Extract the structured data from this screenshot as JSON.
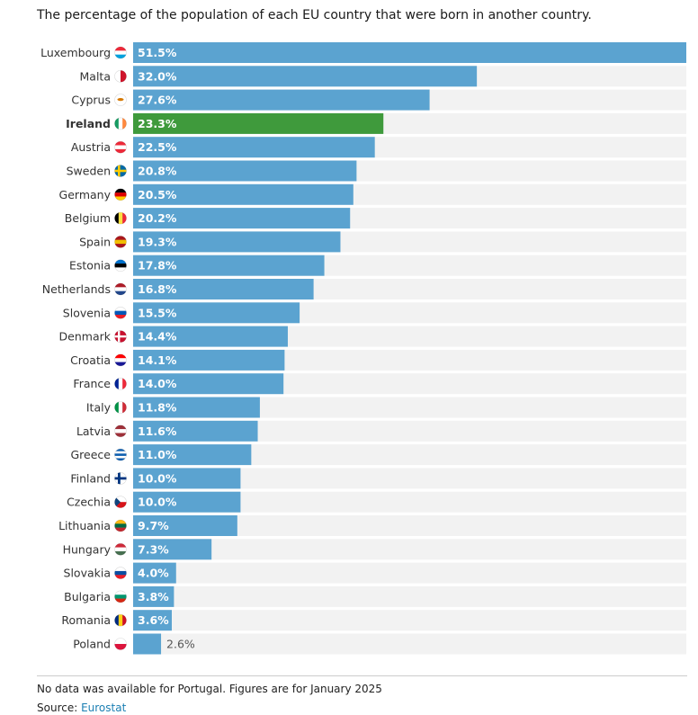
{
  "chart_data": {
    "type": "bar",
    "orientation": "horizontal",
    "title": "The percentage of the population of each EU country that were born in another country.",
    "categories": [
      "Luxembourg",
      "Malta",
      "Cyprus",
      "Ireland",
      "Austria",
      "Sweden",
      "Germany",
      "Belgium",
      "Spain",
      "Estonia",
      "Netherlands",
      "Slovenia",
      "Denmark",
      "Croatia",
      "France",
      "Italy",
      "Latvia",
      "Greece",
      "Finland",
      "Czechia",
      "Lithuania",
      "Hungary",
      "Slovakia",
      "Bulgaria",
      "Romania",
      "Poland"
    ],
    "values": [
      51.5,
      32.0,
      27.6,
      23.3,
      22.5,
      20.8,
      20.5,
      20.2,
      19.3,
      17.8,
      16.8,
      15.5,
      14.4,
      14.1,
      14.0,
      11.8,
      11.6,
      11.0,
      10.0,
      10.0,
      9.7,
      7.3,
      4.0,
      3.8,
      3.6,
      2.6
    ],
    "labels": [
      "51.5%",
      "32.0%",
      "27.6%",
      "23.3%",
      "22.5%",
      "20.8%",
      "20.5%",
      "20.2%",
      "19.3%",
      "17.8%",
      "16.8%",
      "15.5%",
      "14.4%",
      "14.1%",
      "14.0%",
      "11.8%",
      "11.6%",
      "11.0%",
      "10.0%",
      "10.0%",
      "9.7%",
      "7.3%",
      "4.0%",
      "3.8%",
      "3.6%",
      "2.6%"
    ],
    "flags": [
      "flag-luxembourg-icon",
      "flag-malta-icon",
      "flag-cyprus-icon",
      "flag-ireland-icon",
      "flag-austria-icon",
      "flag-sweden-icon",
      "flag-germany-icon",
      "flag-belgium-icon",
      "flag-spain-icon",
      "flag-estonia-icon",
      "flag-netherlands-icon",
      "flag-slovenia-icon",
      "flag-denmark-icon",
      "flag-croatia-icon",
      "flag-france-icon",
      "flag-italy-icon",
      "flag-latvia-icon",
      "flag-greece-icon",
      "flag-finland-icon",
      "flag-czechia-icon",
      "flag-lithuania-icon",
      "flag-hungary-icon",
      "flag-slovakia-icon",
      "flag-bulgaria-icon",
      "flag-romania-icon",
      "flag-poland-icon"
    ],
    "highlight": "Ireland",
    "xlim": [
      0,
      51.5
    ],
    "xlabel": "",
    "ylabel": "",
    "grid": false,
    "colors": {
      "bar": "#5ba3d0",
      "highlight": "#3f9a3c",
      "track": "#f2f2f2",
      "bar_label": "#ffffff",
      "outside_label": "#555555"
    }
  },
  "footer": {
    "note": "No data was available for Portugal. Figures are for January 2025",
    "source_prefix": "Source: ",
    "source_link": "Eurostat"
  }
}
